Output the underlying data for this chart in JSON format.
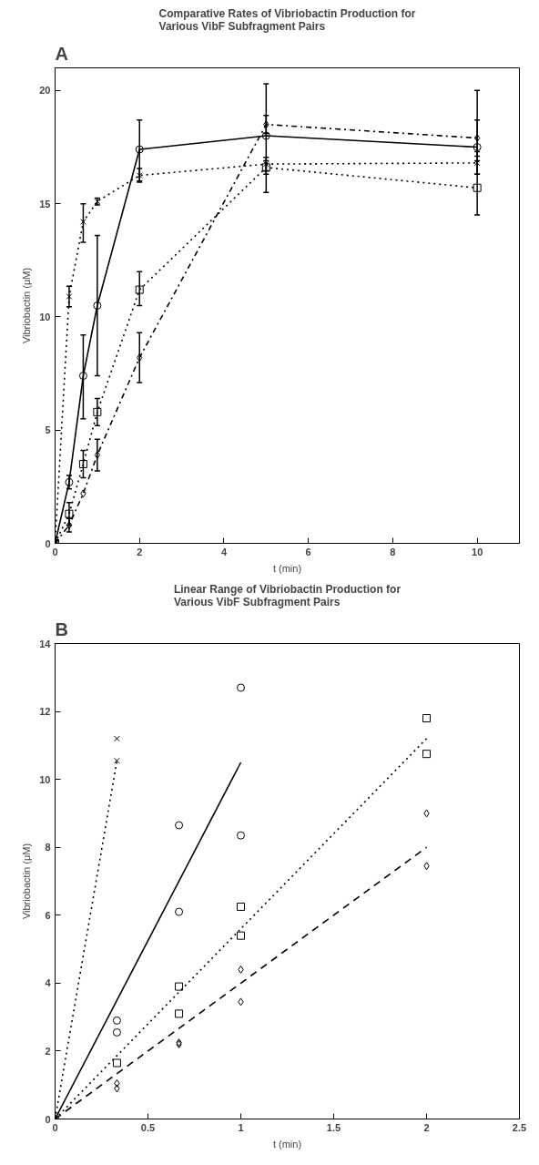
{
  "chart_data": [
    {
      "type": "line",
      "title": "Comparative Rates of Vibriobactin Production for Various VibF Subfragment Pairs",
      "xlabel": "t (min)",
      "ylabel": "Vibriobactin (μM)",
      "annotations": [
        "A"
      ],
      "xlim": [
        0,
        11
      ],
      "xticks": [
        0,
        2,
        4,
        6,
        8,
        10
      ],
      "ylim": [
        0,
        21
      ],
      "yticks": [
        0,
        5,
        10,
        15,
        20
      ],
      "grid": false,
      "series": [
        {
          "color": "#000000",
          "marker": "circle",
          "line_style": "solid",
          "x": [
            0,
            0.333,
            0.667,
            1,
            2,
            5,
            10
          ],
          "values": [
            0,
            2.7,
            7.4,
            10.5,
            17.4,
            18.0,
            17.5
          ],
          "errors": [
            null,
            0.3,
            [
              5.5,
              9.2
            ],
            [
              7.4,
              13.6
            ],
            [
              16.0,
              18.7
            ],
            [
              15.5,
              20.3
            ],
            [
              16.3,
              20.0
            ]
          ]
        },
        {
          "color": "#000000",
          "marker": "cross",
          "line_style": "dotted",
          "x": [
            0,
            0.333,
            0.667,
            1,
            2,
            5,
            10
          ],
          "values": [
            0,
            10.9,
            14.2,
            15.1,
            16.25,
            16.75,
            16.8
          ],
          "errors": [
            null,
            0.45,
            [
              13.3,
              15.0
            ],
            0.15,
            0.3,
            0.3,
            0.5
          ]
        },
        {
          "color": "#000000",
          "marker": "square",
          "line_style": "dotted",
          "x": [
            0,
            0.333,
            0.667,
            1,
            2,
            5,
            10
          ],
          "values": [
            0,
            1.3,
            3.5,
            5.8,
            11.2,
            16.6,
            15.7
          ],
          "errors": [
            null,
            0.5,
            0.6,
            0.6,
            [
              10.5,
              12.0
            ],
            0.3,
            [
              14.5,
              16.9
            ]
          ]
        },
        {
          "color": "#000000",
          "marker": "diamond",
          "line_style": "dashdot",
          "x": [
            0,
            0.333,
            0.667,
            1,
            2,
            5,
            10
          ],
          "values": [
            0,
            0.8,
            2.2,
            3.9,
            8.2,
            18.5,
            17.9
          ],
          "errors": [
            null,
            0.3,
            null,
            [
              3.2,
              4.6
            ],
            [
              7.1,
              9.3
            ],
            0.4,
            0.8
          ]
        }
      ]
    },
    {
      "type": "scatter",
      "title": "Linear Range of Vibriobactin Production for Various VibF Subfragment Pairs",
      "xlabel": "t (min)",
      "ylabel": "Vibriobactin (μM)",
      "annotations": [
        "B"
      ],
      "xlim": [
        0,
        2.5
      ],
      "xticks": [
        0,
        0.5,
        1,
        1.5,
        2,
        2.5
      ],
      "ylim": [
        0,
        14
      ],
      "yticks": [
        0,
        2,
        4,
        6,
        8,
        10,
        12,
        14
      ],
      "grid": false,
      "series": [
        {
          "color": "#000000",
          "marker": "cross",
          "x": [
            0.333,
            0.333
          ],
          "values": [
            11.2,
            10.55
          ]
        },
        {
          "color": "#000000",
          "marker": "circle",
          "x": [
            0,
            0.333,
            0.333,
            0.667,
            0.667,
            1,
            1
          ],
          "values": [
            0,
            2.9,
            2.55,
            8.65,
            6.1,
            12.7,
            8.35
          ]
        },
        {
          "color": "#000000",
          "marker": "square",
          "x": [
            0.333,
            0.667,
            0.667,
            1,
            1,
            2,
            2
          ],
          "values": [
            1.65,
            3.9,
            3.1,
            6.25,
            5.4,
            11.8,
            10.75
          ]
        },
        {
          "color": "#000000",
          "marker": "diamond",
          "x": [
            0.333,
            0.333,
            0.667,
            0.667,
            1,
            1,
            2,
            2
          ],
          "values": [
            1.05,
            0.9,
            2.25,
            2.2,
            4.4,
            3.45,
            9.0,
            7.45
          ]
        },
        {
          "type": "line",
          "color": "#000000",
          "marker": "none",
          "line_style": "dotted",
          "x": [
            0,
            0.333
          ],
          "values": [
            0,
            10.55
          ]
        },
        {
          "type": "line",
          "color": "#000000",
          "marker": "none",
          "line_style": "solid",
          "x": [
            0,
            1
          ],
          "values": [
            0,
            10.5
          ]
        },
        {
          "type": "line",
          "color": "#000000",
          "marker": "none",
          "line_style": "dotted",
          "x": [
            0,
            2
          ],
          "values": [
            0,
            11.2
          ]
        },
        {
          "type": "line",
          "color": "#000000",
          "marker": "none",
          "line_style": "dashed",
          "x": [
            0,
            2
          ],
          "values": [
            0,
            8.0
          ]
        }
      ]
    }
  ]
}
